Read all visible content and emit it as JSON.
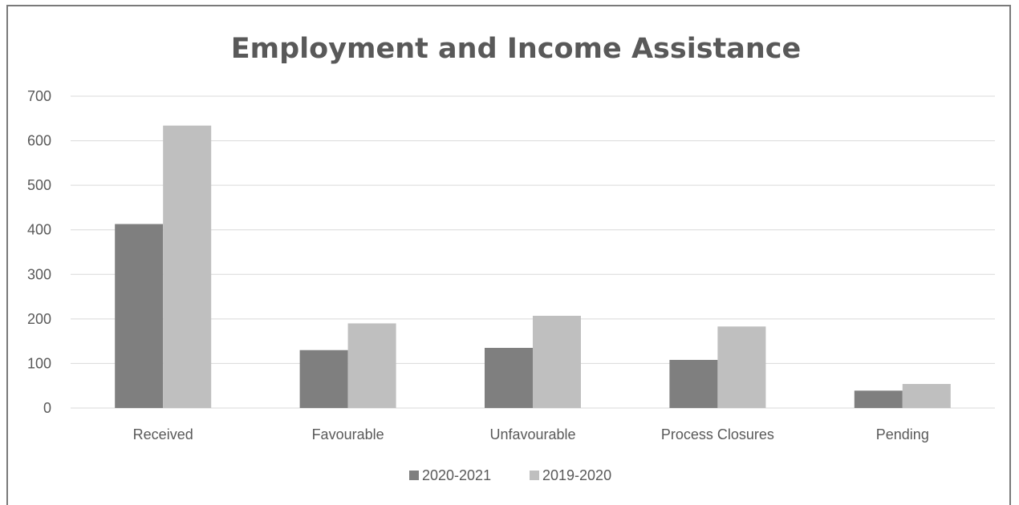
{
  "chart_data": {
    "type": "bar",
    "title": "Employment and Income Assistance",
    "categories": [
      "Received",
      "Favourable",
      "Unfavourable",
      "Process Closures",
      "Pending"
    ],
    "series": [
      {
        "name": "2020-2021",
        "values": [
          413,
          130,
          135,
          108,
          39
        ],
        "color": "#7f7f7f"
      },
      {
        "name": "2019-2020",
        "values": [
          634,
          190,
          207,
          183,
          54
        ],
        "color": "#bfbfbf"
      }
    ],
    "xlabel": "",
    "ylabel": "",
    "ylim": [
      0,
      700
    ],
    "yticks": [
      0,
      100,
      200,
      300,
      400,
      500,
      600,
      700
    ],
    "grid": true,
    "legend_position": "bottom"
  }
}
